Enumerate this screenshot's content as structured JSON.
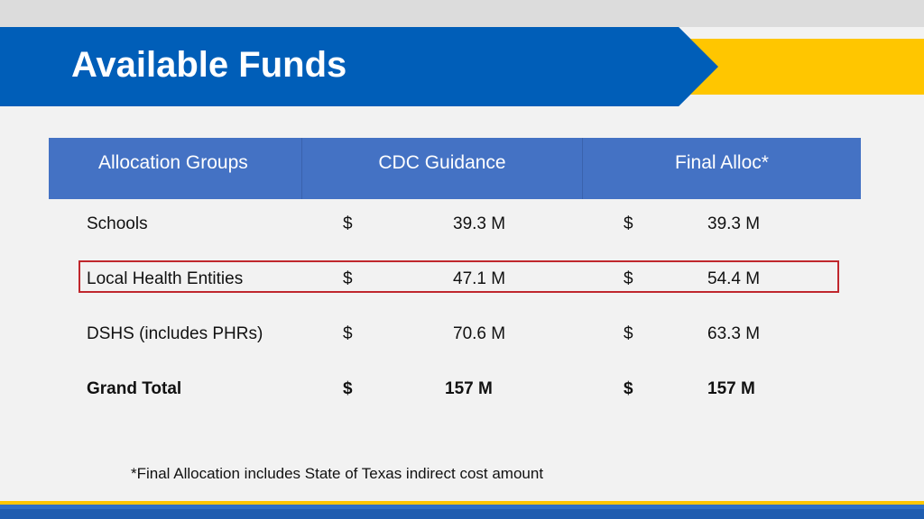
{
  "title": "Available Funds",
  "colors": {
    "banner": "#005eb8",
    "accent": "#ffc600",
    "table_header": "#4472c4",
    "highlight_border": "#c0272d"
  },
  "table": {
    "headers": [
      "Allocation Groups",
      "CDC Guidance",
      "Final Alloc*"
    ],
    "rows": [
      {
        "label": "Schools",
        "cdc_currency": "$",
        "cdc_value": "39.3 M",
        "final_currency": "$",
        "final_value": "39.3 M",
        "highlighted": false,
        "bold": false
      },
      {
        "label": "Local Health Entities",
        "cdc_currency": "$",
        "cdc_value": "47.1 M",
        "final_currency": "$",
        "final_value": "54.4 M",
        "highlighted": true,
        "bold": false
      },
      {
        "label": "DSHS (includes PHRs)",
        "cdc_currency": "$",
        "cdc_value": "70.6 M",
        "final_currency": "$",
        "final_value": "63.3 M",
        "highlighted": false,
        "bold": false
      },
      {
        "label": "Grand Total",
        "cdc_currency": "$",
        "cdc_value": "157 M",
        "final_currency": "$",
        "final_value": "157 M",
        "highlighted": false,
        "bold": true
      }
    ]
  },
  "footnote": "*Final Allocation includes State of Texas indirect cost amount"
}
